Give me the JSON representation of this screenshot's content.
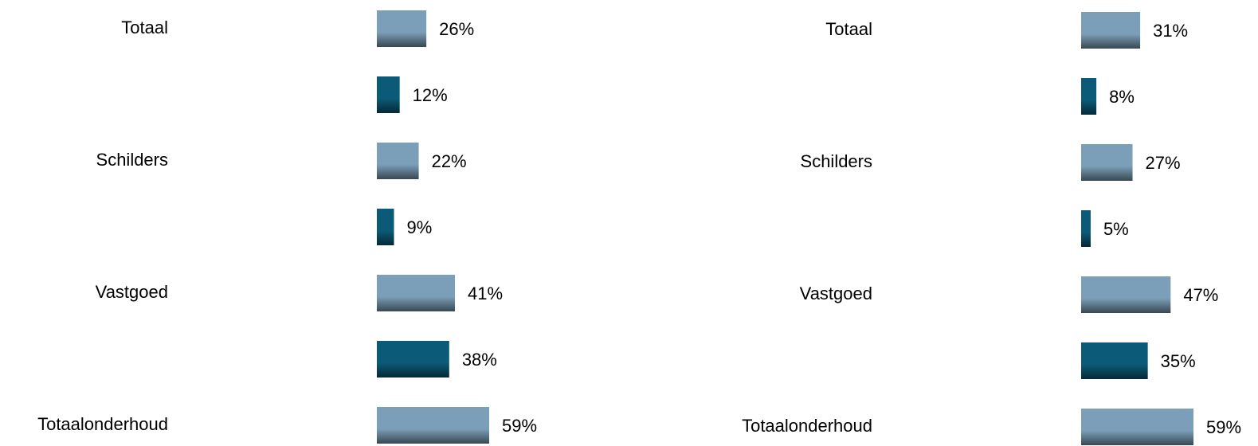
{
  "chart_data": [
    {
      "type": "bar",
      "categories": [
        "Totaal",
        null,
        "Schilders",
        null,
        "Vastgoed",
        null,
        "Totaalonderhoud"
      ],
      "values": [
        26,
        12,
        22,
        9,
        41,
        38,
        59
      ],
      "value_labels": [
        "26%",
        "12%",
        "22%",
        "9%",
        "41%",
        "38%",
        "59%"
      ],
      "colors": [
        "#7b9fb8",
        "#0b5a77",
        "#7b9fb8",
        "#0b5a77",
        "#7b9fb8",
        "#0b5a77",
        "#7b9fb8"
      ]
    },
    {
      "type": "bar",
      "categories": [
        "Totaal",
        null,
        "Schilders",
        null,
        "Vastgoed",
        null,
        "Totaalonderhoud"
      ],
      "values": [
        31,
        8,
        27,
        5,
        47,
        35,
        59
      ],
      "value_labels": [
        "31%",
        "8%",
        "27%",
        "5%",
        "47%",
        "35%",
        "59%"
      ],
      "colors": [
        "#7b9fb8",
        "#0b5a77",
        "#7b9fb8",
        "#0b5a77",
        "#7b9fb8",
        "#0b5a77",
        "#7b9fb8"
      ]
    }
  ]
}
